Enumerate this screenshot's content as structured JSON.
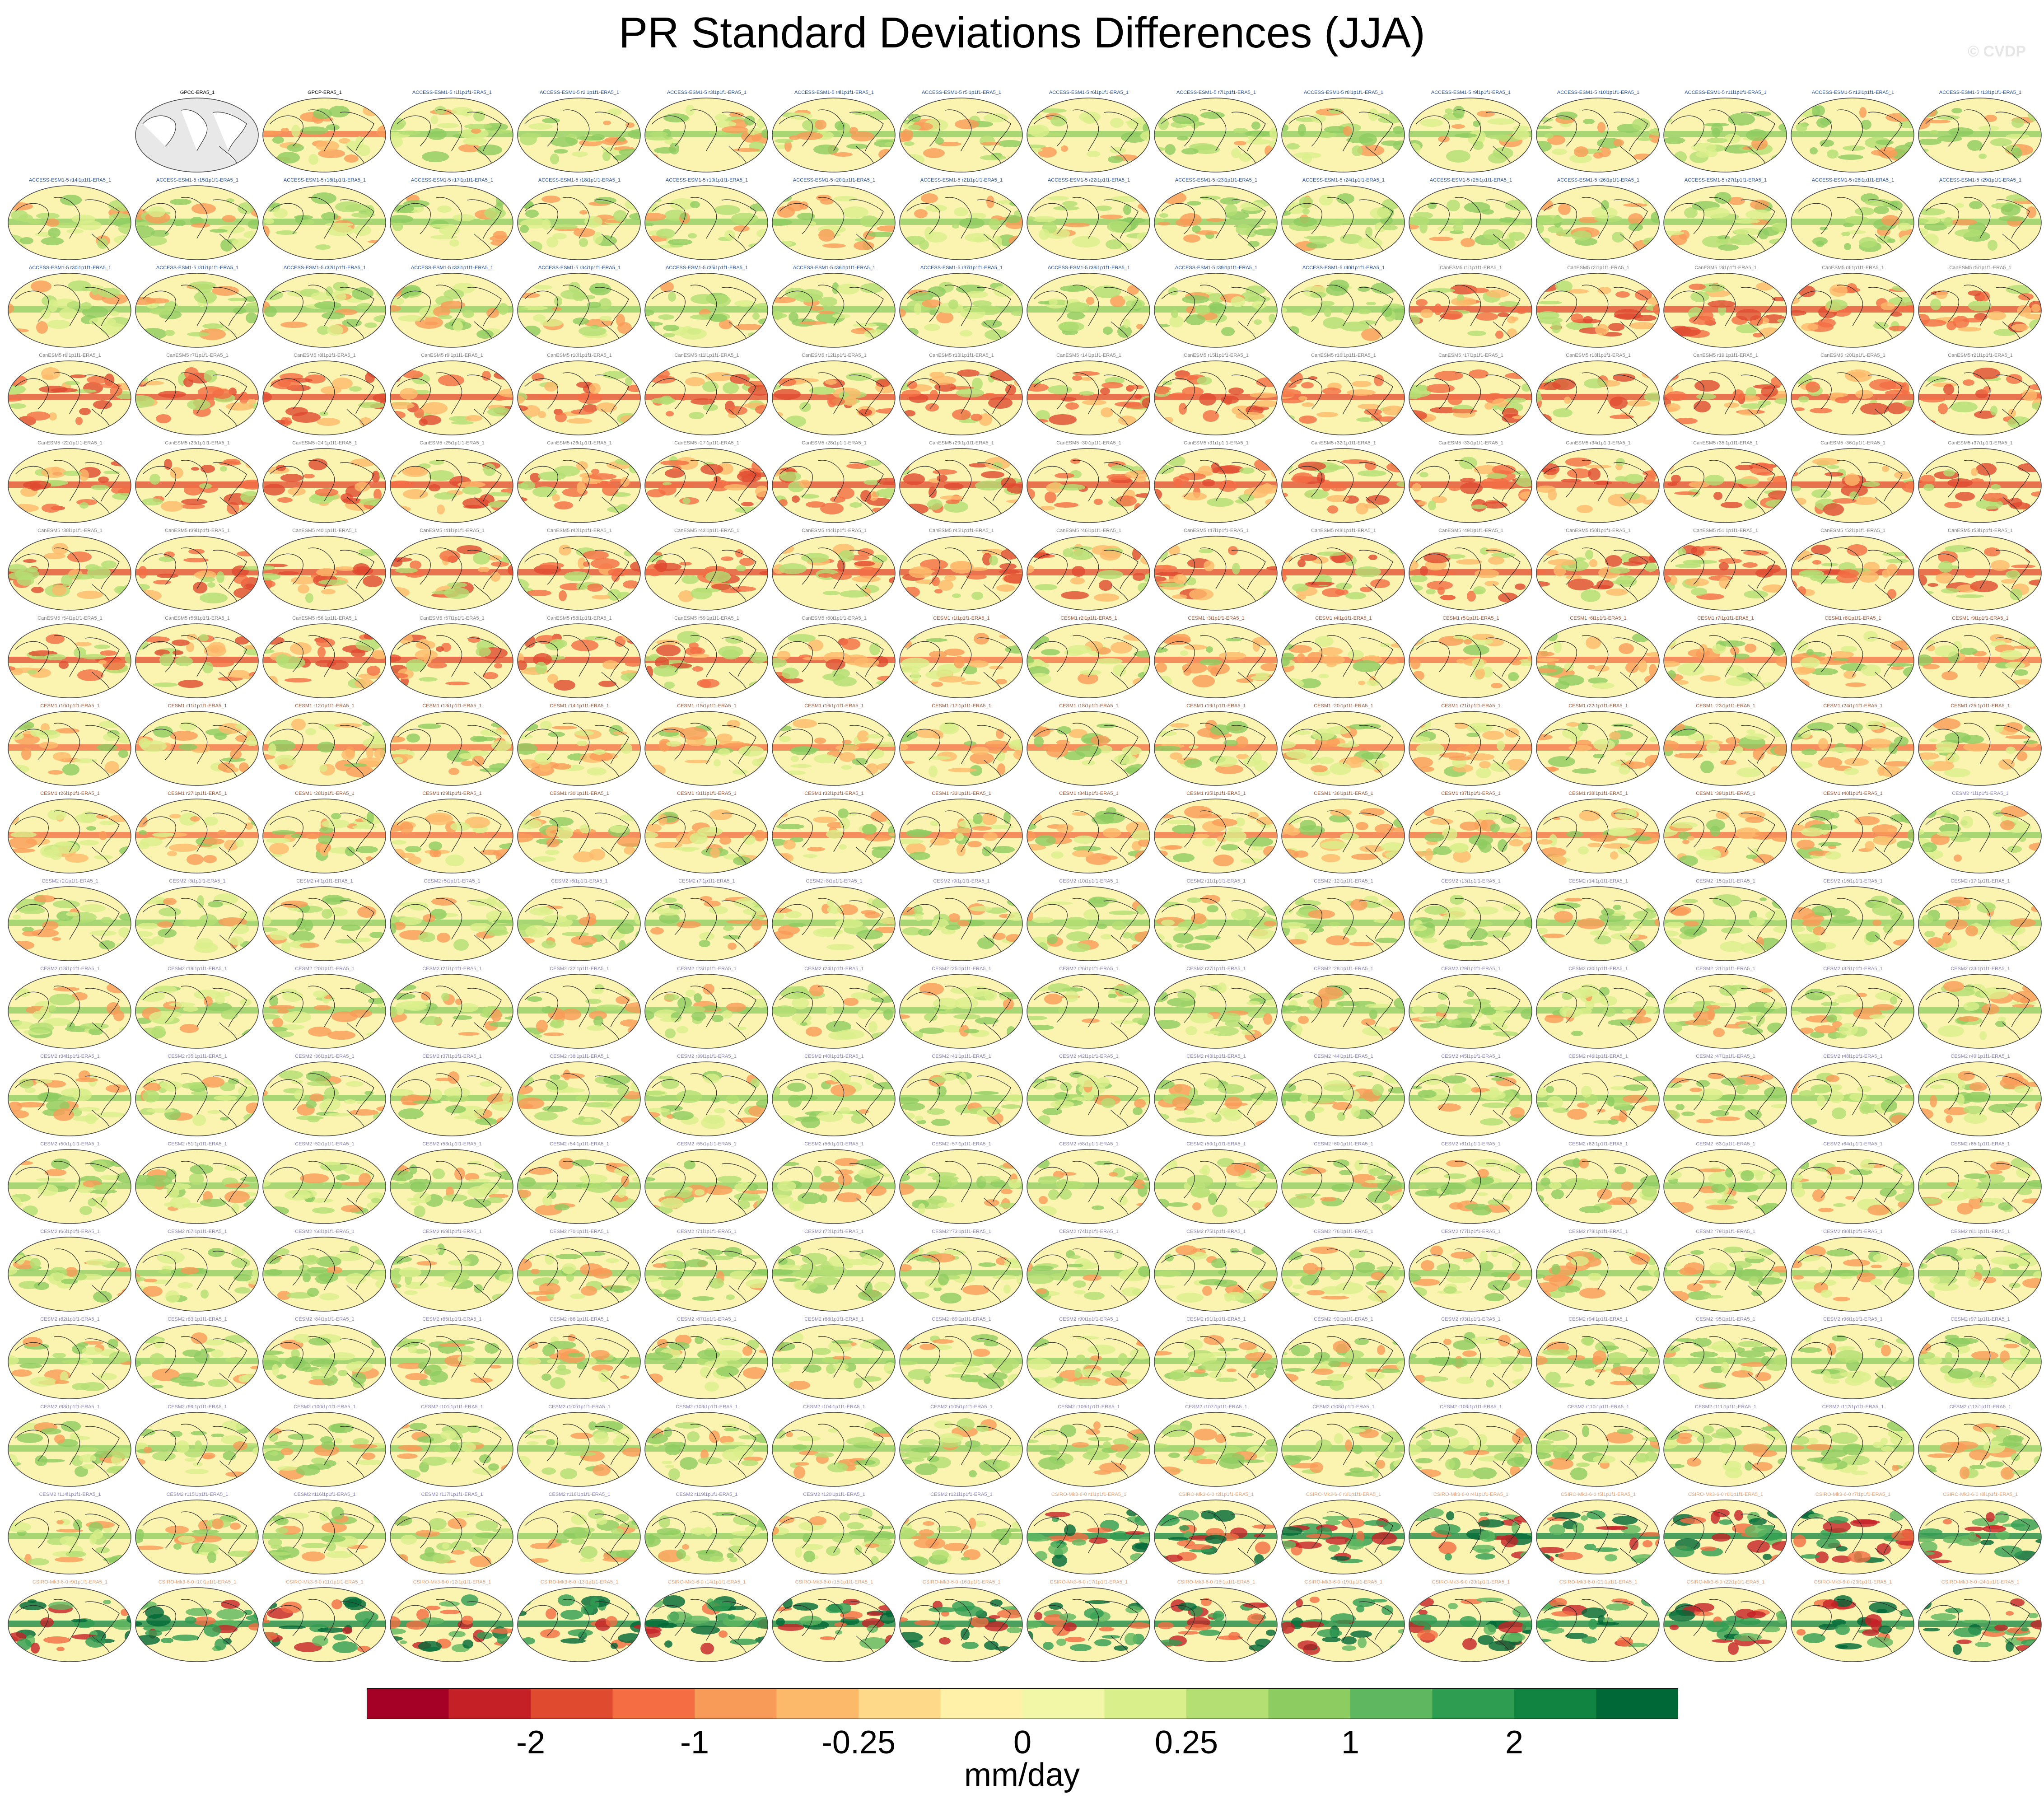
{
  "title": "PR Standard Deviations Differences (JJA)",
  "watermark": "© CVDP",
  "grid": {
    "columns": 16,
    "rows": 18
  },
  "panels": [
    {
      "label": "GPCC-ERA5_1",
      "label_color": "#000000",
      "style": "gray"
    },
    {
      "label": "GPCP-ERA5_1",
      "label_color": "#000000",
      "style": "mixed"
    },
    {
      "label": "ACCESS-ESM1-5 r1i1p1f1-ERA5_1",
      "label_color": "#1f4e9e",
      "style": "green"
    },
    {
      "label": "ACCESS-ESM1-5 r2i1p1f1-ERA5_1",
      "label_color": "#1f4e9e",
      "style": "green"
    },
    {
      "label": "ACCESS-ESM1-5 r3i1p1f1-ERA5_1",
      "label_color": "#1f4e9e",
      "style": "green"
    },
    {
      "label": "ACCESS-ESM1-5 r4i1p1f1-ERA5_1",
      "label_color": "#1f4e9e",
      "style": "green"
    },
    {
      "label": "ACCESS-ESM1-5 r5i1p1f1-ERA5_1",
      "label_color": "#1f4e9e",
      "style": "green"
    },
    {
      "label": "ACCESS-ESM1-5 r6i1p1f1-ERA5_1",
      "label_color": "#1f4e9e",
      "style": "green"
    },
    {
      "label": "ACCESS-ESM1-5 r7i1p1f1-ERA5_1",
      "label_color": "#1f4e9e",
      "style": "green"
    },
    {
      "label": "ACCESS-ESM1-5 r8i1p1f1-ERA5_1",
      "label_color": "#1f4e9e",
      "style": "green"
    },
    {
      "label": "ACCESS-ESM1-5 r9i1p1f1-ERA5_1",
      "label_color": "#1f4e9e",
      "style": "green"
    },
    {
      "label": "ACCESS-ESM1-5 r10i1p1f1-ERA5_1",
      "label_color": "#1f4e9e",
      "style": "green"
    },
    {
      "label": "ACCESS-ESM1-5 r11i1p1f1-ERA5_1",
      "label_color": "#1f4e9e",
      "style": "green"
    },
    {
      "label": "ACCESS-ESM1-5 r12i1p1f1-ERA5_1",
      "label_color": "#1f4e9e",
      "style": "green"
    },
    {
      "label": "ACCESS-ESM1-5 r13i1p1f1-ERA5_1",
      "label_color": "#1f4e9e",
      "style": "green"
    },
    {
      "label": "ACCESS-ESM1-5 r14i1p1f1-ERA5_1",
      "label_color": "#1f4e9e",
      "style": "green"
    }
  ],
  "groups": [
    {
      "prefix": "ACCESS-ESM1-5 ",
      "start": 15,
      "count": 26,
      "label_color": "#1f4e9e",
      "style": "green"
    },
    {
      "prefix": "CanESM5 ",
      "start": 1,
      "count": 60,
      "label_color": "#7f7f7f",
      "style": "red"
    },
    {
      "prefix": "CESM1 ",
      "start": 1,
      "count": 40,
      "label_color": "#a0522d",
      "style": "mixed"
    },
    {
      "prefix": "CESM2 ",
      "start": 1,
      "count": 121,
      "label_color": "#8a7fb8",
      "style": "green"
    },
    {
      "prefix": "CSIRO-Mk3-6-0 ",
      "start": 1,
      "count": 30,
      "label_color": "#e8a070",
      "style": "strong"
    }
  ],
  "colorbar": {
    "colors": [
      "#a50026",
      "#c62027",
      "#e04a2f",
      "#f46d43",
      "#f99b58",
      "#fdb96a",
      "#fed98a",
      "#fff2a8",
      "#f2f7a8",
      "#d9ef8b",
      "#b3df73",
      "#8dcc60",
      "#5fb760",
      "#2e9c51",
      "#128442",
      "#006837"
    ],
    "tick_labels": [
      "-2",
      "-1",
      "-0.25",
      "0",
      "0.25",
      "1",
      "2"
    ],
    "units": "mm/day"
  }
}
